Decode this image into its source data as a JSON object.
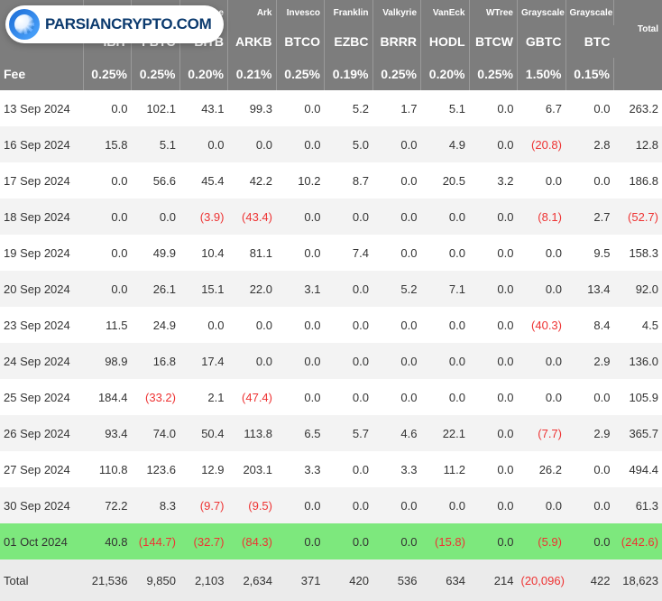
{
  "watermark": {
    "text": "PARSIANCRYPTO.COM"
  },
  "colors": {
    "header_bg": "#7d7d7d",
    "header_border": "#9a9a9a",
    "row_odd": "#ffffff",
    "row_even": "#f3f3f3",
    "highlight": "#7de87d",
    "total_row": "#ebebeb",
    "negative": "#e33"
  },
  "issuers": [
    "",
    "",
    "",
    "vise",
    "Ark",
    "Invesco",
    "Franklin",
    "Valkyrie",
    "VanEck",
    "WTree",
    "Grayscale",
    "Grayscale"
  ],
  "total_label": "Total",
  "tickers": [
    "",
    "IBIT",
    "FBTC",
    "BITB",
    "ARKB",
    "BTCO",
    "EZBC",
    "BRRR",
    "HODL",
    "BTCW",
    "GBTC",
    "BTC"
  ],
  "fee_label": "Fee",
  "fees": [
    "0.25%",
    "0.25%",
    "0.20%",
    "0.21%",
    "0.25%",
    "0.19%",
    "0.25%",
    "0.20%",
    "0.25%",
    "1.50%",
    "0.15%"
  ],
  "rows": [
    {
      "date": "13 Sep 2024",
      "v": [
        "0.0",
        "102.1",
        "43.1",
        "99.3",
        "0.0",
        "5.2",
        "1.7",
        "5.1",
        "0.0",
        "6.7",
        "0.0"
      ],
      "total": "263.2"
    },
    {
      "date": "16 Sep 2024",
      "v": [
        "15.8",
        "5.1",
        "0.0",
        "0.0",
        "0.0",
        "5.0",
        "0.0",
        "4.9",
        "0.0",
        "(20.8)",
        "2.8"
      ],
      "total": "12.8"
    },
    {
      "date": "17 Sep 2024",
      "v": [
        "0.0",
        "56.6",
        "45.4",
        "42.2",
        "10.2",
        "8.7",
        "0.0",
        "20.5",
        "3.2",
        "0.0",
        "0.0"
      ],
      "total": "186.8"
    },
    {
      "date": "18 Sep 2024",
      "v": [
        "0.0",
        "0.0",
        "(3.9)",
        "(43.4)",
        "0.0",
        "0.0",
        "0.0",
        "0.0",
        "0.0",
        "(8.1)",
        "2.7"
      ],
      "total": "(52.7)"
    },
    {
      "date": "19 Sep 2024",
      "v": [
        "0.0",
        "49.9",
        "10.4",
        "81.1",
        "0.0",
        "7.4",
        "0.0",
        "0.0",
        "0.0",
        "0.0",
        "9.5"
      ],
      "total": "158.3"
    },
    {
      "date": "20 Sep 2024",
      "v": [
        "0.0",
        "26.1",
        "15.1",
        "22.0",
        "3.1",
        "0.0",
        "5.2",
        "7.1",
        "0.0",
        "0.0",
        "13.4"
      ],
      "total": "92.0"
    },
    {
      "date": "23 Sep 2024",
      "v": [
        "11.5",
        "24.9",
        "0.0",
        "0.0",
        "0.0",
        "0.0",
        "0.0",
        "0.0",
        "0.0",
        "(40.3)",
        "8.4"
      ],
      "total": "4.5"
    },
    {
      "date": "24 Sep 2024",
      "v": [
        "98.9",
        "16.8",
        "17.4",
        "0.0",
        "0.0",
        "0.0",
        "0.0",
        "0.0",
        "0.0",
        "0.0",
        "2.9"
      ],
      "total": "136.0"
    },
    {
      "date": "25 Sep 2024",
      "v": [
        "184.4",
        "(33.2)",
        "2.1",
        "(47.4)",
        "0.0",
        "0.0",
        "0.0",
        "0.0",
        "0.0",
        "0.0",
        "0.0"
      ],
      "total": "105.9"
    },
    {
      "date": "26 Sep 2024",
      "v": [
        "93.4",
        "74.0",
        "50.4",
        "113.8",
        "6.5",
        "5.7",
        "4.6",
        "22.1",
        "0.0",
        "(7.7)",
        "2.9"
      ],
      "total": "365.7"
    },
    {
      "date": "27 Sep 2024",
      "v": [
        "110.8",
        "123.6",
        "12.9",
        "203.1",
        "3.3",
        "0.0",
        "3.3",
        "11.2",
        "0.0",
        "26.2",
        "0.0"
      ],
      "total": "494.4"
    },
    {
      "date": "30 Sep 2024",
      "v": [
        "72.2",
        "8.3",
        "(9.7)",
        "(9.5)",
        "0.0",
        "0.0",
        "0.0",
        "0.0",
        "0.0",
        "0.0",
        "0.0"
      ],
      "total": "61.3"
    },
    {
      "date": "01 Oct 2024",
      "v": [
        "40.8",
        "(144.7)",
        "(32.7)",
        "(84.3)",
        "0.0",
        "0.0",
        "0.0",
        "(15.8)",
        "0.0",
        "(5.9)",
        "0.0"
      ],
      "total": "(242.6)",
      "highlight": true
    }
  ],
  "grand_total": {
    "label": "Total",
    "v": [
      "21,536",
      "9,850",
      "2,103",
      "2,634",
      "371",
      "420",
      "536",
      "634",
      "214",
      "(20,096)",
      "422"
    ],
    "total": "18,623"
  }
}
